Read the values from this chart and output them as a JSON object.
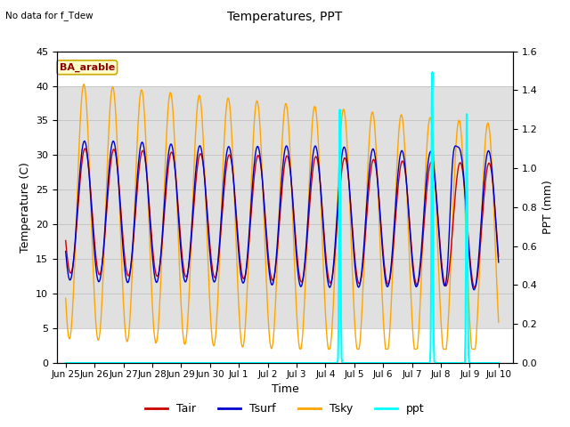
{
  "title": "Temperatures, PPT",
  "subtitle": "No data for f_Tdew",
  "location_label": "BA_arable",
  "xlabel": "Time",
  "ylabel_left": "Temperature (C)",
  "ylabel_right": "PPT (mm)",
  "ylim_left": [
    0,
    45
  ],
  "ylim_right": [
    0.0,
    1.6
  ],
  "yticks_left": [
    0,
    5,
    10,
    15,
    20,
    25,
    30,
    35,
    40,
    45
  ],
  "yticks_right": [
    0.0,
    0.2,
    0.4,
    0.6,
    0.8,
    1.0,
    1.2,
    1.4,
    1.6
  ],
  "gray_band": [
    5,
    40
  ],
  "colors": {
    "Tair": "#cc0000",
    "Tsurf": "#0000cc",
    "Tsky": "#ffa500",
    "ppt": "#00ffff",
    "background": "#ffffff",
    "gray_band": "#e0e0e0"
  },
  "legend": [
    "Tair",
    "Tsurf",
    "Tsky",
    "ppt"
  ],
  "xtick_labels": [
    "Jun 25",
    "Jun 26",
    "Jun 27",
    "Jun 28",
    "Jun 29",
    "Jun 30",
    "Jul 1",
    "Jul 2",
    "Jul 3",
    "Jul 4",
    "Jul 5",
    "Jul 6",
    "Jul 7",
    "Jul 8",
    "Jul 9",
    "Jul 10"
  ],
  "figsize": [
    6.4,
    4.8
  ],
  "dpi": 100
}
